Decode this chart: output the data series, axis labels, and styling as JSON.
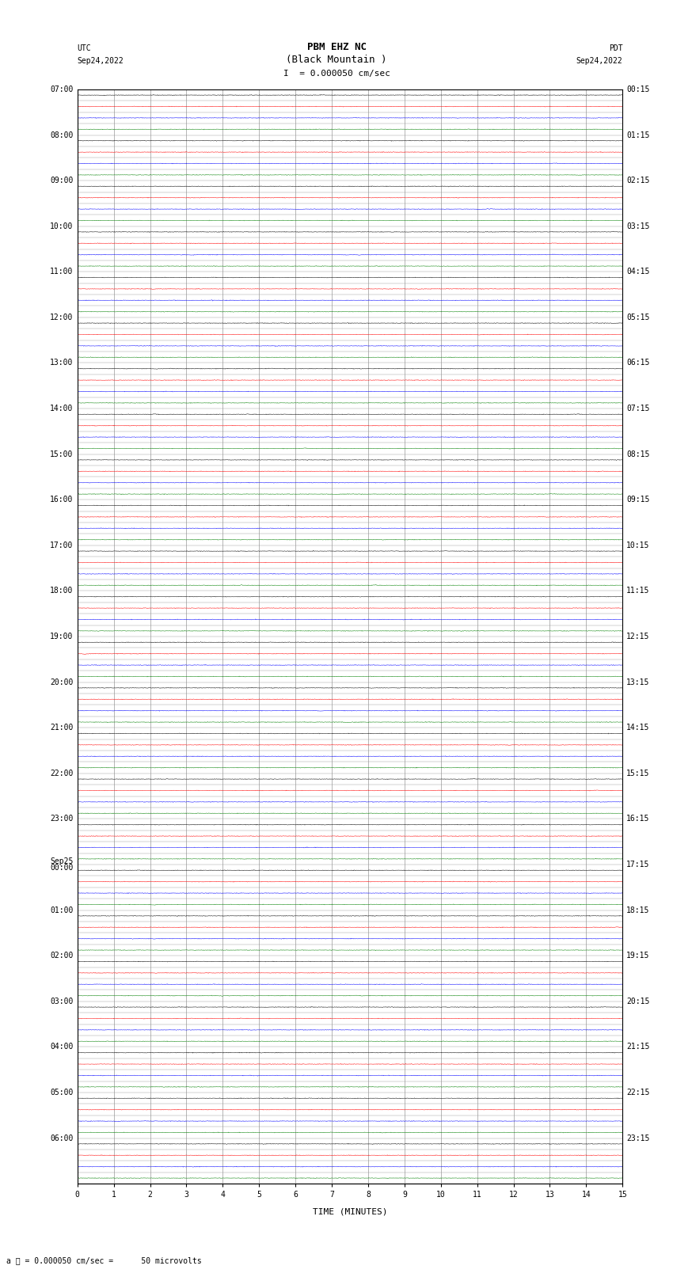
{
  "title_line1": "PBM EHZ NC",
  "title_line2": "(Black Mountain )",
  "scale_text": "I  = 0.000050 cm/sec",
  "utc_label": "UTC",
  "utc_date": "Sep24,2022",
  "pdt_label": "PDT",
  "pdt_date": "Sep24,2022",
  "xlabel": "TIME (MINUTES)",
  "footer_text": "a ℓ = 0.000050 cm/sec =      50 microvolts",
  "left_times_labeled": [
    [
      "07:00",
      0
    ],
    [
      "08:00",
      4
    ],
    [
      "09:00",
      8
    ],
    [
      "10:00",
      12
    ],
    [
      "11:00",
      16
    ],
    [
      "12:00",
      20
    ],
    [
      "13:00",
      24
    ],
    [
      "14:00",
      28
    ],
    [
      "15:00",
      32
    ],
    [
      "16:00",
      36
    ],
    [
      "17:00",
      40
    ],
    [
      "18:00",
      44
    ],
    [
      "19:00",
      48
    ],
    [
      "20:00",
      52
    ],
    [
      "21:00",
      56
    ],
    [
      "22:00",
      60
    ],
    [
      "23:00",
      64
    ],
    [
      "Sep25\n00:00",
      68
    ],
    [
      "01:00",
      72
    ],
    [
      "02:00",
      76
    ],
    [
      "03:00",
      80
    ],
    [
      "04:00",
      84
    ],
    [
      "05:00",
      88
    ],
    [
      "06:00",
      92
    ]
  ],
  "right_times_labeled": [
    [
      "00:15",
      0
    ],
    [
      "01:15",
      4
    ],
    [
      "02:15",
      8
    ],
    [
      "03:15",
      12
    ],
    [
      "04:15",
      16
    ],
    [
      "05:15",
      20
    ],
    [
      "06:15",
      24
    ],
    [
      "07:15",
      28
    ],
    [
      "08:15",
      32
    ],
    [
      "09:15",
      36
    ],
    [
      "10:15",
      40
    ],
    [
      "11:15",
      44
    ],
    [
      "12:15",
      48
    ],
    [
      "13:15",
      52
    ],
    [
      "14:15",
      56
    ],
    [
      "15:15",
      60
    ],
    [
      "16:15",
      64
    ],
    [
      "17:15",
      68
    ],
    [
      "18:15",
      72
    ],
    [
      "19:15",
      76
    ],
    [
      "20:15",
      80
    ],
    [
      "21:15",
      84
    ],
    [
      "22:15",
      88
    ],
    [
      "23:15",
      92
    ]
  ],
  "n_rows": 96,
  "n_cols": 15,
  "trace_colors": [
    "black",
    "red",
    "blue",
    "green"
  ],
  "background_color": "white",
  "grid_color": "#999999",
  "figsize": [
    8.5,
    16.13
  ],
  "dpi": 100,
  "noise_amplitude": 0.012,
  "spike_amplitude": 0.06,
  "x_ticks": [
    0,
    1,
    2,
    3,
    4,
    5,
    6,
    7,
    8,
    9,
    10,
    11,
    12,
    13,
    14,
    15
  ],
  "title_fontsize": 9,
  "label_fontsize": 7,
  "tick_fontsize": 7,
  "row_label_fontsize": 7,
  "green_bar_color": "#00bb00"
}
